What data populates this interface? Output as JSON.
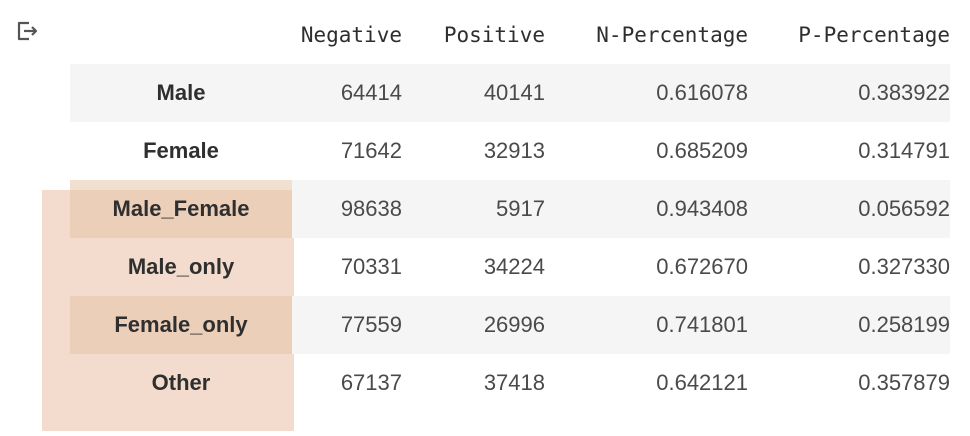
{
  "output": {
    "icon": "output-arrow-icon"
  },
  "table": {
    "columns": [
      "Negative",
      "Positive",
      "N-Percentage",
      "P-Percentage"
    ],
    "rows": [
      {
        "index": "Male",
        "cells": [
          "64414",
          "40141",
          "0.616078",
          "0.383922"
        ]
      },
      {
        "index": "Female",
        "cells": [
          "71642",
          "32913",
          "0.685209",
          "0.314791"
        ]
      },
      {
        "index": "Male_Female",
        "cells": [
          "98638",
          "5917",
          "0.943408",
          "0.056592"
        ]
      },
      {
        "index": "Male_only",
        "cells": [
          "70331",
          "34224",
          "0.672670",
          "0.327330"
        ]
      },
      {
        "index": "Female_only",
        "cells": [
          "77559",
          "26996",
          "0.741801",
          "0.258199"
        ]
      },
      {
        "index": "Other",
        "cells": [
          "67137",
          "37418",
          "0.642121",
          "0.357879"
        ]
      }
    ]
  },
  "colors": {
    "highlight": "#f3dccd",
    "stripe": "#f5f5f5"
  }
}
